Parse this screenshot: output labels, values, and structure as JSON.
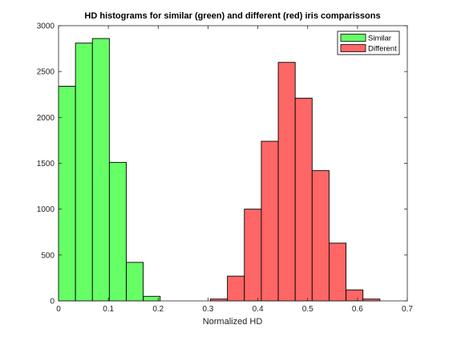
{
  "chart_data": {
    "type": "bar",
    "title": "HD histograms for similar (green) and different (red) iris comparissons",
    "xlabel": "Normalized HD",
    "ylabel": "",
    "xlim": [
      0,
      0.7
    ],
    "ylim": [
      0,
      3000
    ],
    "x_ticks": [
      "0",
      "0.1",
      "0.2",
      "0.3",
      "0.4",
      "0.5",
      "0.6",
      "0.7"
    ],
    "y_ticks": [
      "0",
      "500",
      "1000",
      "1500",
      "2000",
      "2500",
      "3000"
    ],
    "grid": false,
    "legend_position": "top-right",
    "series": [
      {
        "name": "Similar",
        "color": "#66ff66",
        "bins": [
          {
            "x0": 0.0,
            "x1": 0.034,
            "value": 2340
          },
          {
            "x0": 0.034,
            "x1": 0.068,
            "value": 2810
          },
          {
            "x0": 0.068,
            "x1": 0.102,
            "value": 2860
          },
          {
            "x0": 0.102,
            "x1": 0.136,
            "value": 1510
          },
          {
            "x0": 0.136,
            "x1": 0.17,
            "value": 420
          },
          {
            "x0": 0.17,
            "x1": 0.204,
            "value": 50
          }
        ]
      },
      {
        "name": "Different",
        "color": "#ff6666",
        "bins": [
          {
            "x0": 0.305,
            "x1": 0.339,
            "value": 20
          },
          {
            "x0": 0.339,
            "x1": 0.373,
            "value": 270
          },
          {
            "x0": 0.373,
            "x1": 0.407,
            "value": 1000
          },
          {
            "x0": 0.407,
            "x1": 0.441,
            "value": 1740
          },
          {
            "x0": 0.441,
            "x1": 0.475,
            "value": 2600
          },
          {
            "x0": 0.475,
            "x1": 0.509,
            "value": 2210
          },
          {
            "x0": 0.509,
            "x1": 0.543,
            "value": 1420
          },
          {
            "x0": 0.543,
            "x1": 0.577,
            "value": 630
          },
          {
            "x0": 0.577,
            "x1": 0.611,
            "value": 120
          },
          {
            "x0": 0.611,
            "x1": 0.645,
            "value": 20
          }
        ]
      }
    ]
  }
}
